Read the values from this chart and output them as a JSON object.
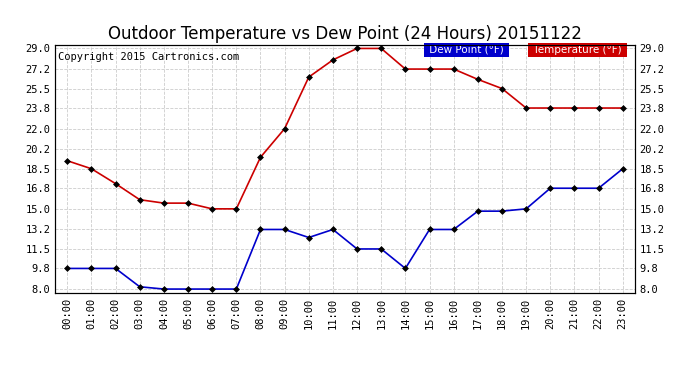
{
  "title": "Outdoor Temperature vs Dew Point (24 Hours) 20151122",
  "copyright": "Copyright 2015 Cartronics.com",
  "hours": [
    "00:00",
    "01:00",
    "02:00",
    "03:00",
    "04:00",
    "05:00",
    "06:00",
    "07:00",
    "08:00",
    "09:00",
    "10:00",
    "11:00",
    "12:00",
    "13:00",
    "14:00",
    "15:00",
    "16:00",
    "17:00",
    "18:00",
    "19:00",
    "20:00",
    "21:00",
    "22:00",
    "23:00"
  ],
  "temperature": [
    19.2,
    18.5,
    17.2,
    15.8,
    15.5,
    15.5,
    15.0,
    15.0,
    19.5,
    22.0,
    26.5,
    28.0,
    29.0,
    29.0,
    27.2,
    27.2,
    27.2,
    26.3,
    25.5,
    23.8,
    23.8,
    23.8,
    23.8,
    23.8
  ],
  "dew_point": [
    9.8,
    9.8,
    9.8,
    8.2,
    8.0,
    8.0,
    8.0,
    8.0,
    13.2,
    13.2,
    12.5,
    13.2,
    11.5,
    11.5,
    9.8,
    13.2,
    13.2,
    14.8,
    14.8,
    15.0,
    16.8,
    16.8,
    16.8,
    18.5
  ],
  "temp_color": "#cc0000",
  "dew_color": "#0000cc",
  "marker_color": "#000000",
  "ylim_min": 8.0,
  "ylim_max": 29.0,
  "yticks": [
    8.0,
    9.8,
    11.5,
    13.2,
    15.0,
    16.8,
    18.5,
    20.2,
    22.0,
    23.8,
    25.5,
    27.2,
    29.0
  ],
  "ytick_labels": [
    "8.0",
    "9.8",
    "11.5",
    "13.2",
    "15.0",
    "16.8",
    "18.5",
    "20.2",
    "22.0",
    "23.8",
    "25.5",
    "27.2",
    "29.0"
  ],
  "bg_color": "#ffffff",
  "grid_color": "#cccccc",
  "legend_dew_bg": "#0000cc",
  "legend_temp_bg": "#cc0000",
  "legend_text_color": "#ffffff",
  "title_fontsize": 12,
  "tick_fontsize": 7.5,
  "copyright_fontsize": 7.5
}
